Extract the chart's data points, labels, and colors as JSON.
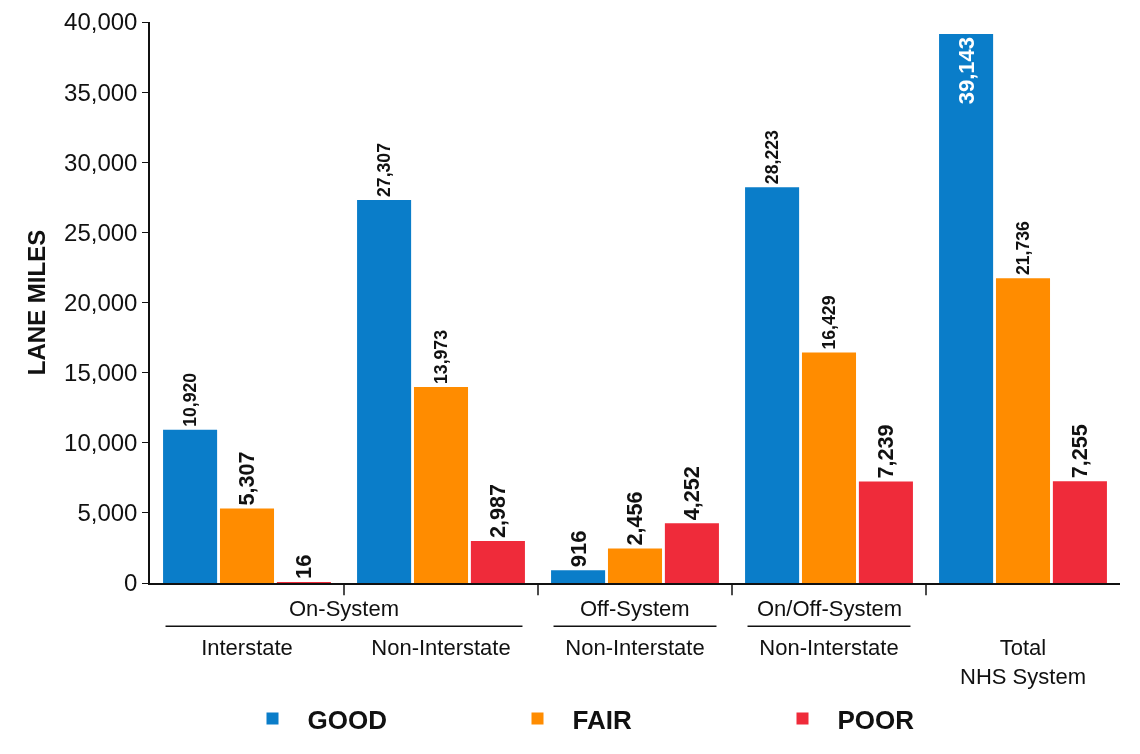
{
  "chart_data": {
    "type": "bar",
    "ylabel": "LANE MILES",
    "categories": [
      "Interstate",
      "Non-Interstate",
      "Non-Interstate",
      "Non-Interstate",
      "Total\nNHS System"
    ],
    "series": [
      {
        "name": "GOOD",
        "color": "#0a7dc9",
        "values": [
          10920,
          27307,
          916,
          28223,
          39143
        ],
        "value_labels": [
          "10,920",
          "27,307",
          "916",
          "28,223",
          "39,143"
        ]
      },
      {
        "name": "FAIR",
        "color": "#ff8c00",
        "values": [
          5307,
          13973,
          2456,
          16429,
          21736
        ],
        "value_labels": [
          "5,307",
          "13,973",
          "2,456",
          "16,429",
          "21,736"
        ]
      },
      {
        "name": "POOR",
        "color": "#ef2b3a",
        "values": [
          16,
          2987,
          4252,
          7239,
          7255
        ],
        "value_labels": [
          "16",
          "2,987",
          "4,252",
          "7,239",
          "7,255"
        ]
      }
    ],
    "annotations": [
      "On-System",
      "Off-System",
      "On/Off-System"
    ],
    "ylim": [
      0,
      40000
    ],
    "yticks": [
      0,
      {
        "value": 5000,
        "label": "5,000"
      },
      {
        "value": 10000,
        "label": "10,000"
      },
      {
        "value": 15000,
        "label": "15,000"
      },
      {
        "value": 20000,
        "label": "20,000"
      },
      {
        "value": 25000,
        "label": "25,000"
      },
      {
        "value": 30000,
        "label": "30,000"
      },
      {
        "value": 35000,
        "label": "35,000"
      },
      {
        "value": 40000,
        "label": "40,000"
      }
    ],
    "grid": false,
    "legend": "bottom"
  }
}
